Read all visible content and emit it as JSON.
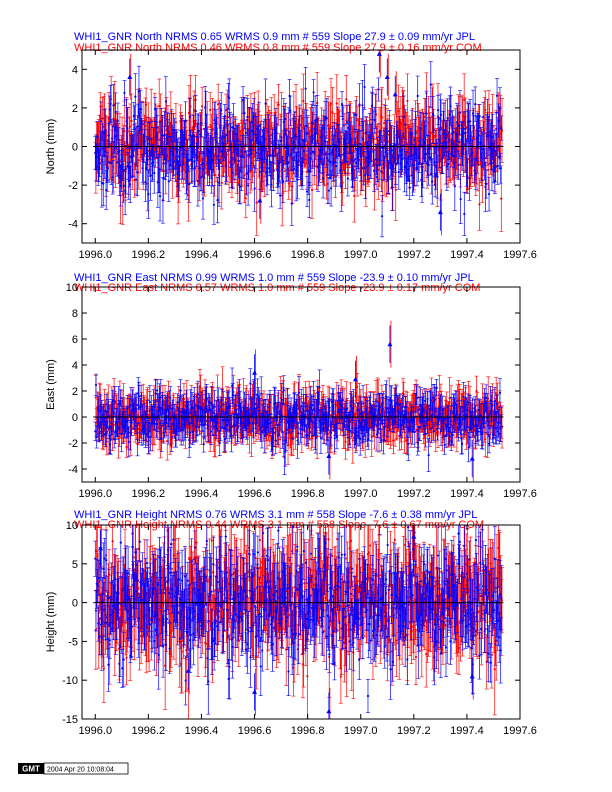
{
  "colors": {
    "jpl": "#0000ff",
    "com": "#ff0000",
    "axis": "#000000",
    "zero": "#000000"
  },
  "chart_data": [
    {
      "type": "scatter",
      "ylabel": "North (mm)",
      "header_jpl": "WHI1_GNR North NRMS 0.65 WRMS  0.9 mm # 559 Slope   27.9 ±  0.09 mm/yr JPL",
      "header_com": "WHI1_GNR North NRMS 0.46 WRMS  0.8 mm # 559 Slope   27.9 ±  0.16 mm/yr COM",
      "xlim": [
        1995.95,
        1997.6
      ],
      "ylim": [
        -5,
        5
      ],
      "xticks": [
        1996.0,
        1996.2,
        1996.4,
        1996.6,
        1996.8,
        1997.0,
        1997.2,
        1997.4,
        1997.6
      ],
      "xtick_labels": [
        "1996.0",
        "1996.2",
        "1996.4",
        "1996.6",
        "1996.8",
        "1997.0",
        "1997.2",
        "1997.4",
        "1997.6"
      ],
      "yticks": [
        -4,
        -2,
        0,
        2,
        4
      ],
      "ytick_labels": [
        "-4",
        "-2",
        "0",
        "2",
        "4"
      ],
      "x_start": 1996.0,
      "x_end": 1997.53,
      "n": 559,
      "jpl": {
        "spread": 1.2,
        "err_min": 0.6,
        "err_max": 1.3,
        "seed": 11
      },
      "com": {
        "spread": 1.0,
        "err_min": 0.8,
        "err_max": 1.7,
        "seed": 23
      },
      "outliers": [
        {
          "x": 1996.13,
          "y": 3.6
        },
        {
          "x": 1997.07,
          "y": 4.8
        },
        {
          "x": 1997.1,
          "y": 3.6
        },
        {
          "x": 1997.13,
          "y": 2.7
        },
        {
          "x": 1997.3,
          "y": -3.4
        },
        {
          "x": 1996.62,
          "y": -2.8
        }
      ]
    },
    {
      "type": "scatter",
      "ylabel": "East (mm)",
      "header_jpl": "WHI1_GNR East NRMS 0.99 WRMS  1.0 mm # 559 Slope  -23.9 ±  0.10 mm/yr JPL",
      "header_com": "WHI1_GNR East NRMS 0.57 WRMS  1.0 mm # 559 Slope  -23.9 ±  0.17 mm/yr COM",
      "xlim": [
        1995.95,
        1997.6
      ],
      "ylim": [
        -5,
        10
      ],
      "xticks": [
        1996.0,
        1996.2,
        1996.4,
        1996.6,
        1996.8,
        1997.0,
        1997.2,
        1997.4,
        1997.6
      ],
      "xtick_labels": [
        "1996.0",
        "1996.2",
        "1996.4",
        "1996.6",
        "1996.8",
        "1997.0",
        "1997.2",
        "1997.4",
        "1997.6"
      ],
      "yticks": [
        -4,
        -2,
        0,
        2,
        4,
        6,
        8,
        10
      ],
      "ytick_labels": [
        "-4",
        "-2",
        "0",
        "2",
        "4",
        "6",
        "8",
        "10"
      ],
      "x_start": 1996.0,
      "x_end": 1997.53,
      "n": 559,
      "jpl": {
        "spread": 1.0,
        "err_min": 0.6,
        "err_max": 1.4,
        "seed": 37
      },
      "com": {
        "spread": 0.9,
        "err_min": 0.8,
        "err_max": 1.8,
        "seed": 41
      },
      "outliers": [
        {
          "x": 1997.11,
          "y": 5.6
        },
        {
          "x": 1996.98,
          "y": 2.9
        },
        {
          "x": 1997.42,
          "y": -3.2
        },
        {
          "x": 1996.6,
          "y": 3.4
        },
        {
          "x": 1996.88,
          "y": -3.0
        }
      ]
    },
    {
      "type": "scatter",
      "ylabel": "Height (mm)",
      "header_jpl": "WHI1_GNR Height NRMS 0.76 WRMS  3.1 mm # 558 Slope   -7.6 ±  0.38 mm/yr JPL",
      "header_com": "WHI1_GNR Height NRMS 0.44 WRMS  3.1 mm # 558 Slope   -7.6 ±  0.67 mm/yr COM",
      "xlim": [
        1995.95,
        1997.6
      ],
      "ylim": [
        -15,
        10
      ],
      "xticks": [
        1996.0,
        1996.2,
        1996.4,
        1996.6,
        1996.8,
        1997.0,
        1997.2,
        1997.4,
        1997.6
      ],
      "xtick_labels": [
        "1996.0",
        "1996.2",
        "1996.4",
        "1996.6",
        "1996.8",
        "1997.0",
        "1997.2",
        "1997.4",
        "1997.6"
      ],
      "yticks": [
        -15,
        -10,
        -5,
        0,
        5,
        10
      ],
      "ytick_labels": [
        "-15",
        "-10",
        "-5",
        "0",
        "5",
        "10"
      ],
      "x_start": 1996.0,
      "x_end": 1997.53,
      "n": 558,
      "jpl": {
        "spread": 4.0,
        "err_min": 2.0,
        "err_max": 4.5,
        "seed": 53
      },
      "com": {
        "spread": 3.5,
        "err_min": 3.0,
        "err_max": 6.0,
        "seed": 67
      },
      "outliers": [
        {
          "x": 1996.6,
          "y": -11.5
        },
        {
          "x": 1996.88,
          "y": -14.0
        },
        {
          "x": 1997.42,
          "y": -9.5
        },
        {
          "x": 1996.02,
          "y": 7.0
        },
        {
          "x": 1997.2,
          "y": 8.5
        },
        {
          "x": 1996.35,
          "y": -8.8
        }
      ]
    }
  ],
  "footer": {
    "logo": "GMT",
    "stamp": "2004 Apr 20 10:08:04"
  }
}
